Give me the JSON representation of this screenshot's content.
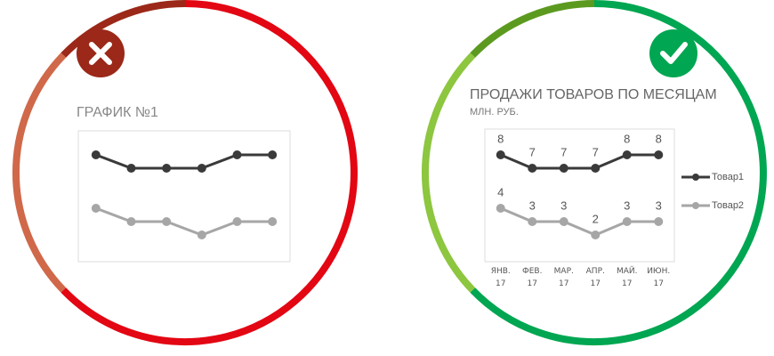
{
  "chart_data": [
    {
      "type": "line",
      "title": "ГРАФИК №1",
      "categories": [
        null,
        null,
        null,
        null,
        null,
        null
      ],
      "series": [
        {
          "color": "#3a3a3a",
          "values": [
            8,
            7,
            7,
            7,
            8,
            8
          ]
        },
        {
          "color": "#a6a6a6",
          "values": [
            4,
            3,
            3,
            2,
            3,
            3
          ]
        }
      ],
      "ylim": [
        0,
        10
      ]
    },
    {
      "type": "line",
      "title": "ПРОДАЖИ ТОВАРОВ ПО МЕСЯЦАМ",
      "subtitle": "МЛН. РУБ.",
      "categories": [
        "ЯНВ. 17",
        "ФЕВ. 17",
        "МАР. 17",
        "АПР. 17",
        "МАЙ. 17",
        "ИЮН. 17"
      ],
      "series": [
        {
          "name": "Товар1",
          "color": "#3a3a3a",
          "values": [
            8,
            7,
            7,
            7,
            8,
            8
          ]
        },
        {
          "name": "Товар2",
          "color": "#a6a6a6",
          "values": [
            4,
            3,
            3,
            2,
            3,
            3
          ]
        }
      ],
      "ylim": [
        0,
        10
      ],
      "data_labels": true,
      "legend": "right"
    }
  ]
}
